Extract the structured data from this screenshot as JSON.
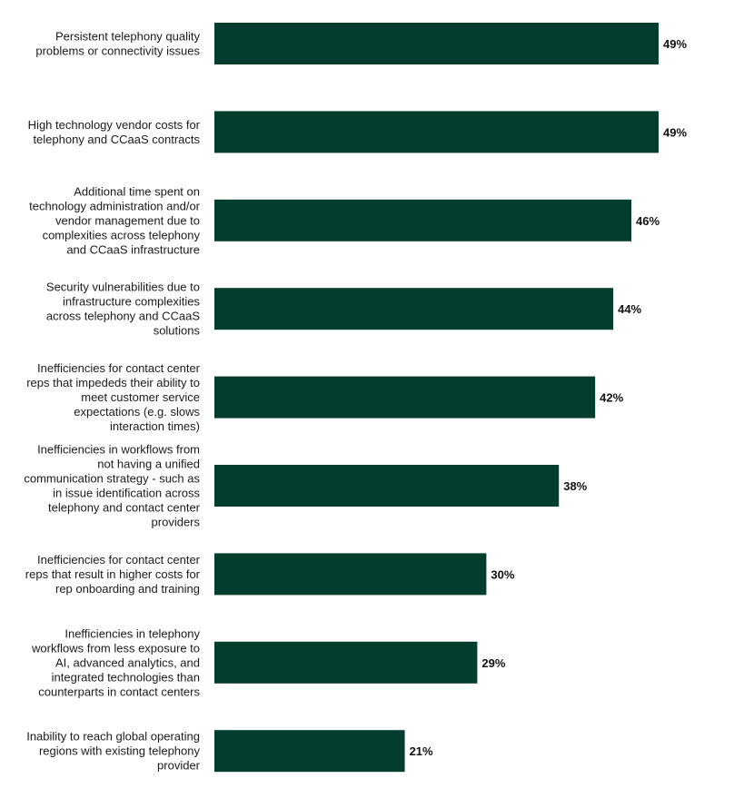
{
  "chart_data": {
    "type": "bar",
    "orientation": "horizontal",
    "unit": "%",
    "xlim": [
      0,
      49
    ],
    "bar_color": "#033d2d",
    "categories": [
      [
        "Persistent telephony quality",
        "problems or connectivity issues"
      ],
      [
        "High technology vendor costs for",
        "telephony and CCaaS contracts"
      ],
      [
        "Additional time spent on",
        "technology administration and/or",
        "vendor management due to",
        "complexities across telephony",
        "and CCaaS infrastructure"
      ],
      [
        "Security vulnerabilities due to",
        "infrastructure complexities",
        "across telephony and CCaaS",
        "solutions"
      ],
      [
        "Inefficiencies for contact center",
        "reps that impededs their ability to",
        "meet customer service",
        "expectations (e.g. slows",
        "interaction times)"
      ],
      [
        "Inefficiencies in workflows from",
        "not having a unified",
        "communication strategy - such as",
        "in issue identification across",
        "telephony and contact center",
        "providers"
      ],
      [
        "Inefficiencies for contact center",
        "reps that result in higher costs for",
        "rep onboarding and training"
      ],
      [
        "Inefficiencies in telephony",
        "workflows from less exposure to",
        "AI, advanced analytics, and",
        "integrated technologies than",
        "counterparts in contact centers"
      ],
      [
        "Inability to reach global operating",
        "regions with existing telephony",
        "provider"
      ]
    ],
    "values": [
      49,
      49,
      46,
      44,
      42,
      38,
      30,
      29,
      21
    ],
    "value_labels": [
      "49%",
      "49%",
      "46%",
      "44%",
      "42%",
      "38%",
      "30%",
      "29%",
      "21%"
    ]
  }
}
